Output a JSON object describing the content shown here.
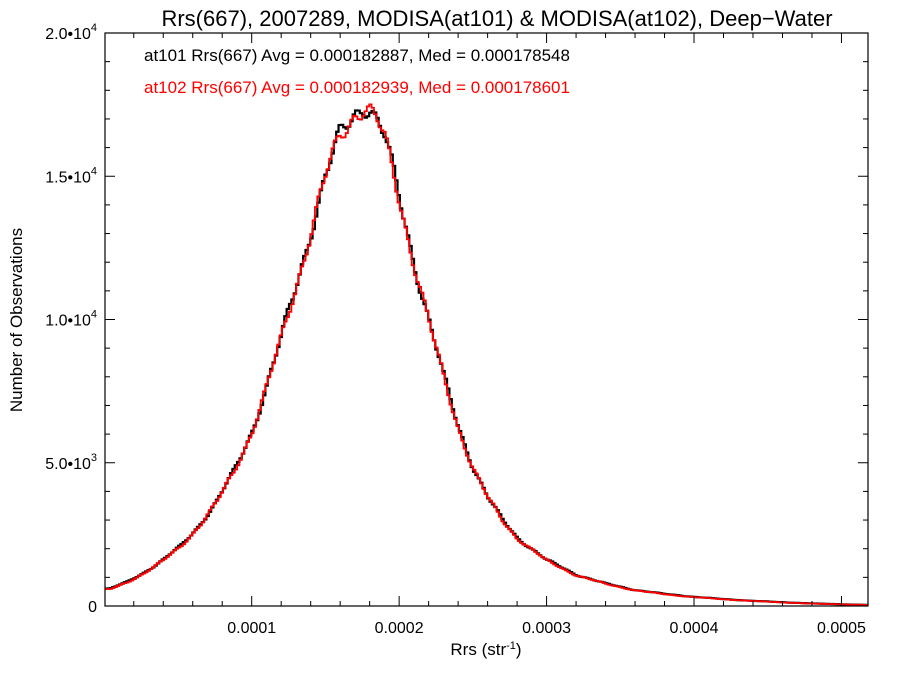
{
  "chart_data": {
    "type": "line",
    "style": "histogram-step",
    "title": "Rrs(667), 2007289, MODISA(at101) & MODISA(at102), Deep−Water",
    "xlabel": "Rrs (str",
    "xlabel_sup": "-1",
    "xlabel_end": ")",
    "ylabel": "Number of Observations",
    "xlim": [
      5e-07,
      0.000518
    ],
    "ylim": [
      0,
      20000
    ],
    "grid": false,
    "legend_placement": "top-left",
    "x_ticks": [
      {
        "value": 0.0001,
        "label": "0.0001"
      },
      {
        "value": 0.0002,
        "label": "0.0002"
      },
      {
        "value": 0.0003,
        "label": "0.0003"
      },
      {
        "value": 0.0004,
        "label": "0.0004"
      },
      {
        "value": 0.0005,
        "label": "0.0005"
      }
    ],
    "y_ticks": [
      {
        "value": 0,
        "mantissa": "0",
        "exponent": ""
      },
      {
        "value": 5000,
        "mantissa": "5.0•10",
        "exponent": "3"
      },
      {
        "value": 10000,
        "mantissa": "1.0•10",
        "exponent": "4"
      },
      {
        "value": 15000,
        "mantissa": "1.5•10",
        "exponent": "4"
      },
      {
        "value": 20000,
        "mantissa": "2.0•10",
        "exponent": "4"
      }
    ],
    "x": [
      4e-06,
      1.6e-05,
      2.8e-05,
      4e-05,
      5.2e-05,
      6.4e-05,
      7.6e-05,
      8.8e-05,
      0.0001,
      0.00011,
      0.00012,
      0.00013,
      0.00014,
      0.00015,
      0.00016,
      0.00017,
      0.000176,
      0.00018,
      0.000185,
      0.00019,
      0.0002,
      0.00021,
      0.00022,
      0.00023,
      0.00024,
      0.00025,
      0.00026,
      0.00027,
      0.00028,
      0.0003,
      0.00032,
      0.00034,
      0.00036,
      0.00038,
      0.0004,
      0.00042,
      0.00044,
      0.00046,
      0.00048,
      0.0005,
      0.000516
    ],
    "series": [
      {
        "name": "at101",
        "color": "#000000",
        "legend": "at101 Rrs(667) Avg = 0.000182887, Med = 0.000178548",
        "values": [
          600,
          850,
          1200,
          1600,
          2100,
          2800,
          3600,
          4700,
          6100,
          7600,
          9300,
          11200,
          13100,
          14900,
          16400,
          17300,
          17600,
          17400,
          16900,
          16300,
          14300,
          12100,
          10000,
          8000,
          6300,
          4900,
          3800,
          3000,
          2400,
          1600,
          1100,
          780,
          560,
          420,
          320,
          240,
          180,
          130,
          90,
          60,
          40
        ]
      },
      {
        "name": "at102",
        "color": "#ff0000",
        "legend": "at102 Rrs(667) Avg = 0.000182939, Med = 0.000178601",
        "values": [
          580,
          830,
          1180,
          1580,
          2080,
          2780,
          3580,
          4680,
          6080,
          7580,
          9280,
          11180,
          13080,
          14880,
          16380,
          17280,
          17500,
          17300,
          16850,
          16250,
          14250,
          12050,
          9950,
          7950,
          6250,
          4850,
          3780,
          2980,
          2380,
          1580,
          1080,
          770,
          550,
          410,
          310,
          235,
          175,
          125,
          85,
          58,
          38
        ]
      }
    ]
  }
}
